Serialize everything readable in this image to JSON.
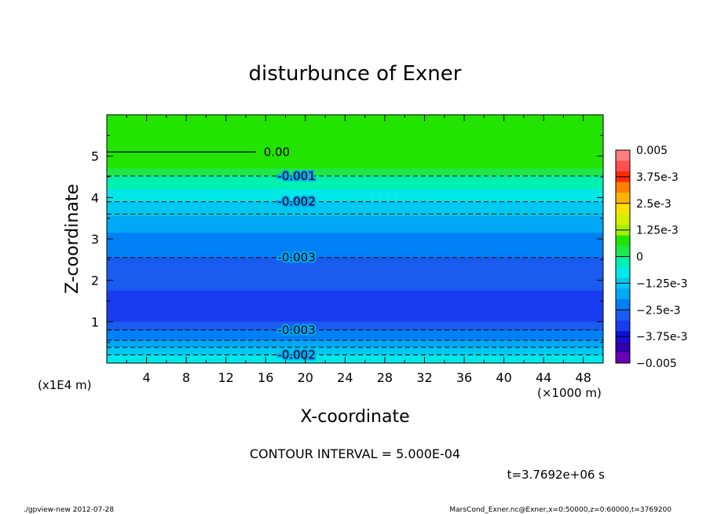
{
  "chart_data": {
    "type": "contour",
    "title": "disturbunce of Exner",
    "xlabel": "X-coordinate",
    "ylabel": "Z-coordinate",
    "x_unit": "(×1000 m)",
    "y_unit": "(x1E4 m)",
    "xlim": [
      0,
      50
    ],
    "ylim": [
      0,
      6
    ],
    "x_ticks": [
      4,
      8,
      12,
      16,
      20,
      24,
      28,
      32,
      36,
      40,
      44,
      48
    ],
    "y_ticks": [
      1,
      2,
      3,
      4,
      5
    ],
    "grid": false,
    "colorbar": {
      "position": "right",
      "labels": [
        "0.005",
        "3.75e-3",
        "2.5e-3",
        "1.25e-3",
        "0",
        "−1.25e-3",
        "−2.5e-3",
        "−3.75e-3",
        "−0.005"
      ],
      "colors": [
        "#ff7f7f",
        "#ff5050",
        "#ff2a00",
        "#ff8000",
        "#ffb300",
        "#ffe000",
        "#d4f000",
        "#a8f000",
        "#22e400",
        "#1de84a",
        "#00f0b0",
        "#00e8e8",
        "#00c8f0",
        "#00a8f5",
        "#0080f5",
        "#1a5cf0",
        "#1a3cf0",
        "#1010d8",
        "#3000a8",
        "#6a00b8"
      ]
    },
    "bands": [
      {
        "z": 6.0,
        "color": "#22e400"
      },
      {
        "z": 4.7,
        "color": "#1de84a"
      },
      {
        "z": 4.52,
        "color": "#00f0b0"
      },
      {
        "z": 4.2,
        "color": "#00e8e8"
      },
      {
        "z": 3.9,
        "color": "#00c8f0"
      },
      {
        "z": 3.55,
        "color": "#00a8f5"
      },
      {
        "z": 3.15,
        "color": "#0080f5"
      },
      {
        "z": 2.55,
        "color": "#1a5cf0"
      },
      {
        "z": 1.75,
        "color": "#1a3cf0"
      },
      {
        "z": 1.0,
        "color": "#1a5cf0"
      },
      {
        "z": 0.8,
        "color": "#0080f5"
      },
      {
        "z": 0.55,
        "color": "#00a8f5"
      },
      {
        "z": 0.38,
        "color": "#00c8f0"
      },
      {
        "z": 0.2,
        "color": "#00e8e8"
      }
    ],
    "contours": [
      {
        "label": "0.00",
        "style": "solid",
        "z": 5.1
      },
      {
        "label": "-0.001",
        "style": "dashed",
        "z": 4.52
      },
      {
        "label": "-0.002",
        "style": "dashed",
        "z": 3.9
      },
      {
        "style": "dashed",
        "z": 3.6
      },
      {
        "label": "-0.003",
        "style": "dashed",
        "z": 2.55
      },
      {
        "label": "-0.003",
        "style": "dashed",
        "z": 0.8
      },
      {
        "style": "dashed",
        "z": 0.55
      },
      {
        "style": "dashed",
        "z": 0.38
      },
      {
        "label": "-0.002",
        "style": "dashed",
        "z": 0.2
      }
    ]
  },
  "contour_interval": "CONTOUR INTERVAL = 5.000E-04",
  "time_label": "t=3.7692e+06 s",
  "footer_left": "./gpview-new   2012-07-28",
  "footer_right": "MarsCond_Exner.nc@Exner,x=0:50000,z=0:60000,t=3769200"
}
